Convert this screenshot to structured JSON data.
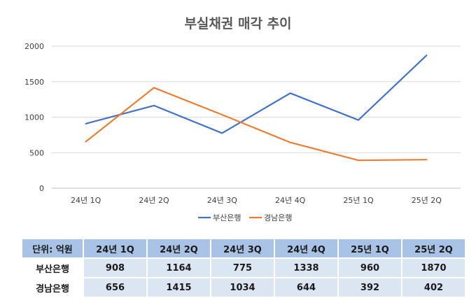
{
  "chart_data": {
    "type": "line",
    "title": "부실채권 매각 추이",
    "categories": [
      "24년 1Q",
      "24년 2Q",
      "24년 3Q",
      "24년 4Q",
      "25년 1Q",
      "25년 2Q"
    ],
    "series": [
      {
        "name": "부산은행",
        "values": [
          908,
          1164,
          775,
          1338,
          960,
          1870
        ],
        "color": "#4472c4"
      },
      {
        "name": "경남은행",
        "values": [
          656,
          1415,
          1034,
          644,
          392,
          402
        ],
        "color": "#ed7d31"
      }
    ],
    "ylim": [
      0,
      2000
    ],
    "yticks": [
      0,
      500,
      1000,
      1500,
      2000
    ],
    "grid": true,
    "legend": "bottom"
  },
  "table": {
    "unit_label": "단위: 억원",
    "headers": [
      "24년 1Q",
      "24년 2Q",
      "24년 3Q",
      "24년 4Q",
      "25년 1Q",
      "25년 2Q"
    ],
    "rows": [
      {
        "name": "부산은행",
        "values": [
          "908",
          "1164",
          "775",
          "1338",
          "960",
          "1870"
        ]
      },
      {
        "name": "경남은행",
        "values": [
          "656",
          "1415",
          "1034",
          "644",
          "392",
          "402"
        ]
      }
    ]
  }
}
